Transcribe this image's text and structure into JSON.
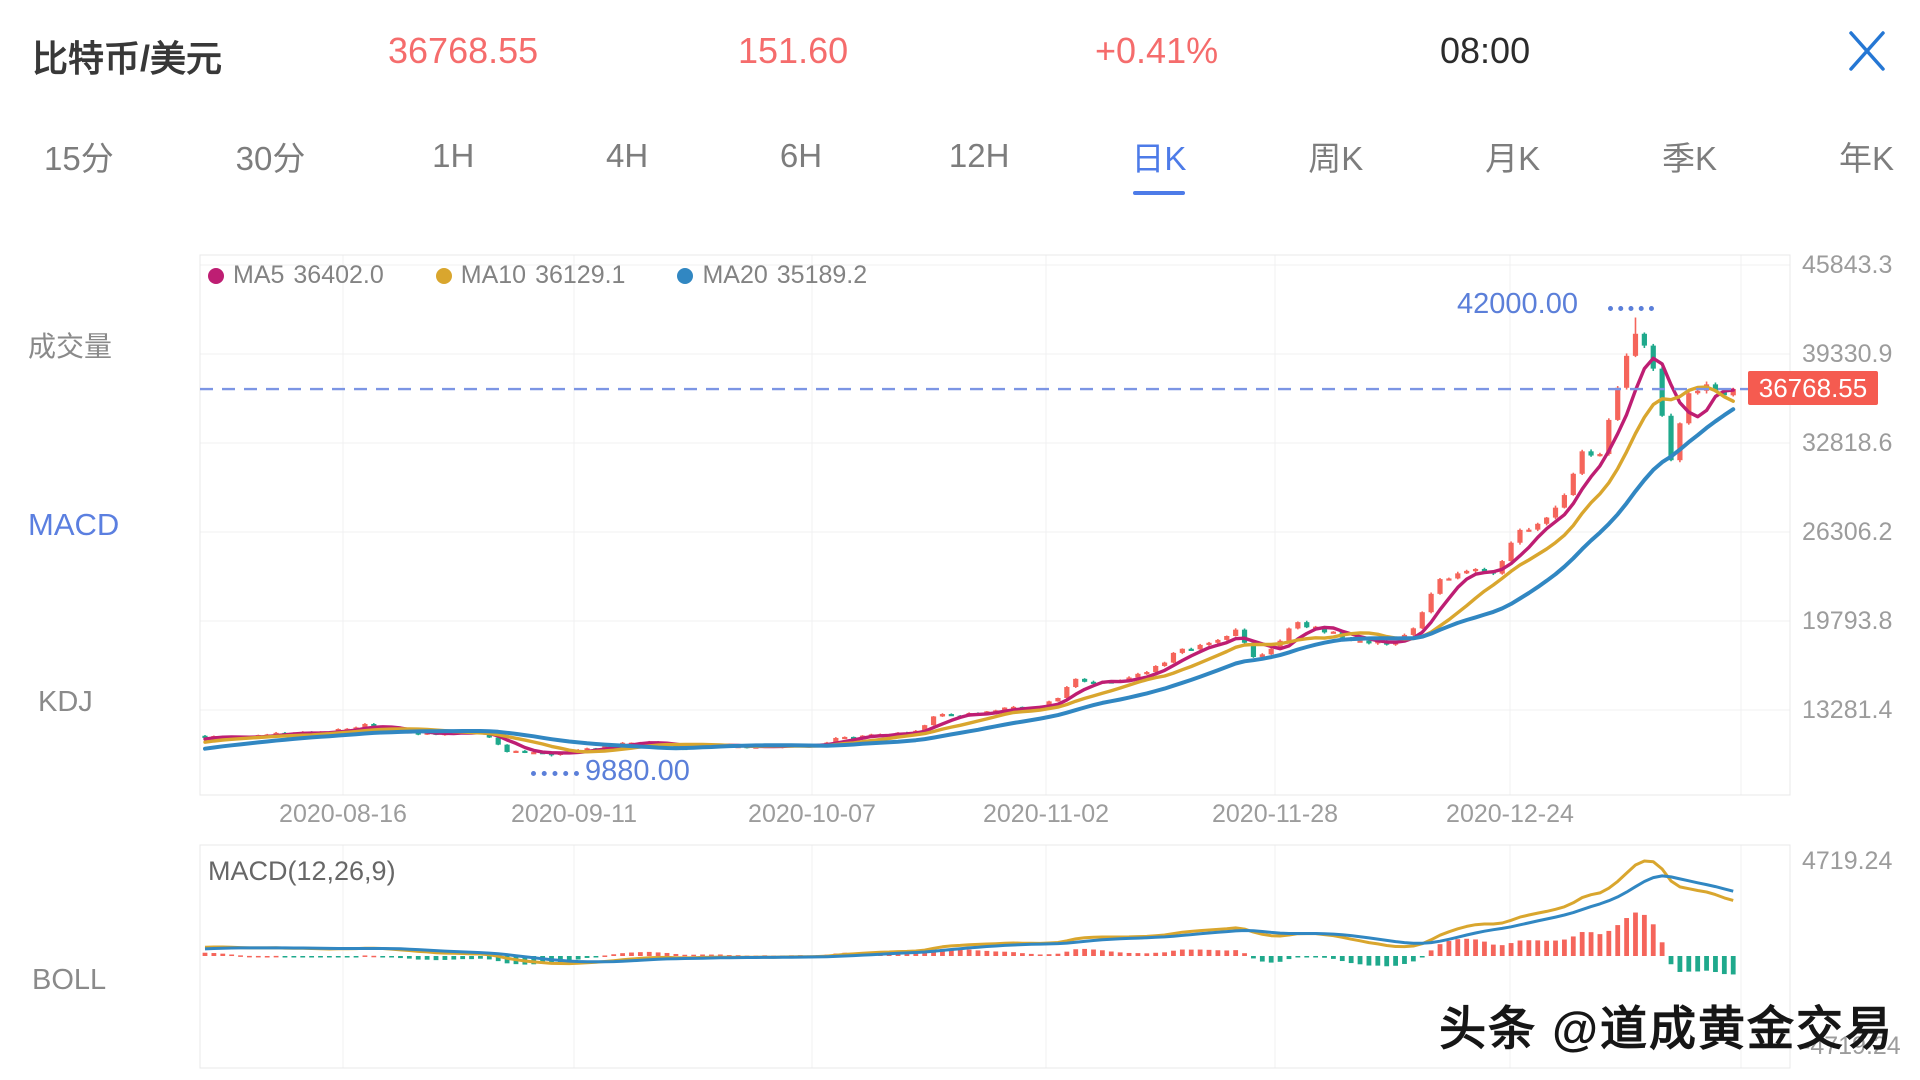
{
  "header": {
    "pair": "比特币/美元",
    "price": "36768.55",
    "change": "151.60",
    "change_percent": "+0.41%",
    "time": "08:00"
  },
  "tabs": {
    "items": [
      "15分",
      "30分",
      "1H",
      "4H",
      "6H",
      "12H",
      "日K",
      "周K",
      "月K",
      "季K",
      "年K"
    ],
    "active": "日K"
  },
  "sidebar": {
    "items": [
      {
        "label": "成交量",
        "active": false
      },
      {
        "label": "MACD",
        "active": true
      },
      {
        "label": "KDJ",
        "active": false
      },
      {
        "label": "BOLL",
        "active": false
      }
    ]
  },
  "legend": {
    "items": [
      {
        "name": "MA5",
        "value": "36402.0",
        "color": "#BE1E73"
      },
      {
        "name": "MA10",
        "value": "36129.1",
        "color": "#D9A62E"
      },
      {
        "name": "MA20",
        "value": "35189.2",
        "color": "#3187C2"
      }
    ]
  },
  "chart_data": {
    "type": "candlestick",
    "title": "比特币/美元 日K",
    "y_ticks": [
      "45843.3",
      "39330.9",
      "32818.6",
      "26306.2",
      "19793.8",
      "13281.4"
    ],
    "x_ticks": [
      "2020-08-16",
      "2020-09-11",
      "2020-10-07",
      "2020-11-02",
      "2020-11-28",
      "2020-12-24"
    ],
    "ylim": [
      9880,
      45843.3
    ],
    "grid": true,
    "current_price": 36768.55,
    "current_price_label": "36768.55",
    "annotations": {
      "high": {
        "value": 42000,
        "label": "42000.00"
      },
      "low": {
        "value": 9880,
        "label": "9880.00"
      }
    },
    "series_note": "close-price anchors [day_index_from_2020-07-31, close]; red=up, green=down",
    "anchors": [
      [
        0,
        11350
      ],
      [
        4,
        11210
      ],
      [
        8,
        11610
      ],
      [
        12,
        11560
      ],
      [
        16,
        11910
      ],
      [
        18,
        12260
      ],
      [
        22,
        11660
      ],
      [
        26,
        11460
      ],
      [
        31,
        11660
      ],
      [
        34,
        10210
      ],
      [
        36,
        10160
      ],
      [
        39,
        9990
      ],
      [
        42,
        10360
      ],
      [
        46,
        10760
      ],
      [
        50,
        10960
      ],
      [
        53,
        10510
      ],
      [
        57,
        10710
      ],
      [
        62,
        10610
      ],
      [
        65,
        10680
      ],
      [
        68,
        10610
      ],
      [
        72,
        11310
      ],
      [
        76,
        11510
      ],
      [
        80,
        11760
      ],
      [
        82,
        12810
      ],
      [
        86,
        13060
      ],
      [
        90,
        13460
      ],
      [
        94,
        13560
      ],
      [
        96,
        14160
      ],
      [
        98,
        15560
      ],
      [
        102,
        15310
      ],
      [
        106,
        16060
      ],
      [
        110,
        17760
      ],
      [
        114,
        18410
      ],
      [
        116,
        19160
      ],
      [
        118,
        17160
      ],
      [
        120,
        17760
      ],
      [
        123,
        19710
      ],
      [
        126,
        18960
      ],
      [
        130,
        18360
      ],
      [
        133,
        18060
      ],
      [
        136,
        19260
      ],
      [
        139,
        22860
      ],
      [
        142,
        23460
      ],
      [
        145,
        23260
      ],
      [
        148,
        26460
      ],
      [
        151,
        27360
      ],
      [
        153,
        29010
      ],
      [
        155,
        32210
      ],
      [
        157,
        32010
      ],
      [
        159,
        36860
      ],
      [
        161,
        40810
      ],
      [
        163,
        38260
      ],
      [
        165,
        31560
      ],
      [
        166,
        34260
      ],
      [
        167,
        36460
      ],
      [
        169,
        37110
      ],
      [
        171,
        36310
      ],
      [
        172,
        36768.55
      ]
    ],
    "moving_averages": [
      {
        "name": "MA5",
        "period": 5,
        "last": 36402.0
      },
      {
        "name": "MA10",
        "period": 10,
        "last": 36129.1
      },
      {
        "name": "MA20",
        "period": 20,
        "last": 35189.2
      }
    ],
    "macd": {
      "title": "MACD(12,26,9)",
      "params": [
        12,
        26,
        9
      ],
      "max_label": "4719.24",
      "min_label": "-4719.24",
      "ylim": [
        -4719.24,
        4719.24
      ]
    }
  },
  "watermark": {
    "text": "头条 @道成黄金交易"
  },
  "colors": {
    "up": "#F5655B",
    "down": "#1FA98C",
    "ma5": "#BE1E73",
    "ma10": "#D9A62E",
    "ma20": "#3187C2",
    "dash_line": "#7C95E4",
    "annotation": "#5B7FD9",
    "accent": "#4D7BE8",
    "badge": "#F55B50",
    "header_red": "#F56C6C",
    "grid": "#f1f1f2"
  }
}
